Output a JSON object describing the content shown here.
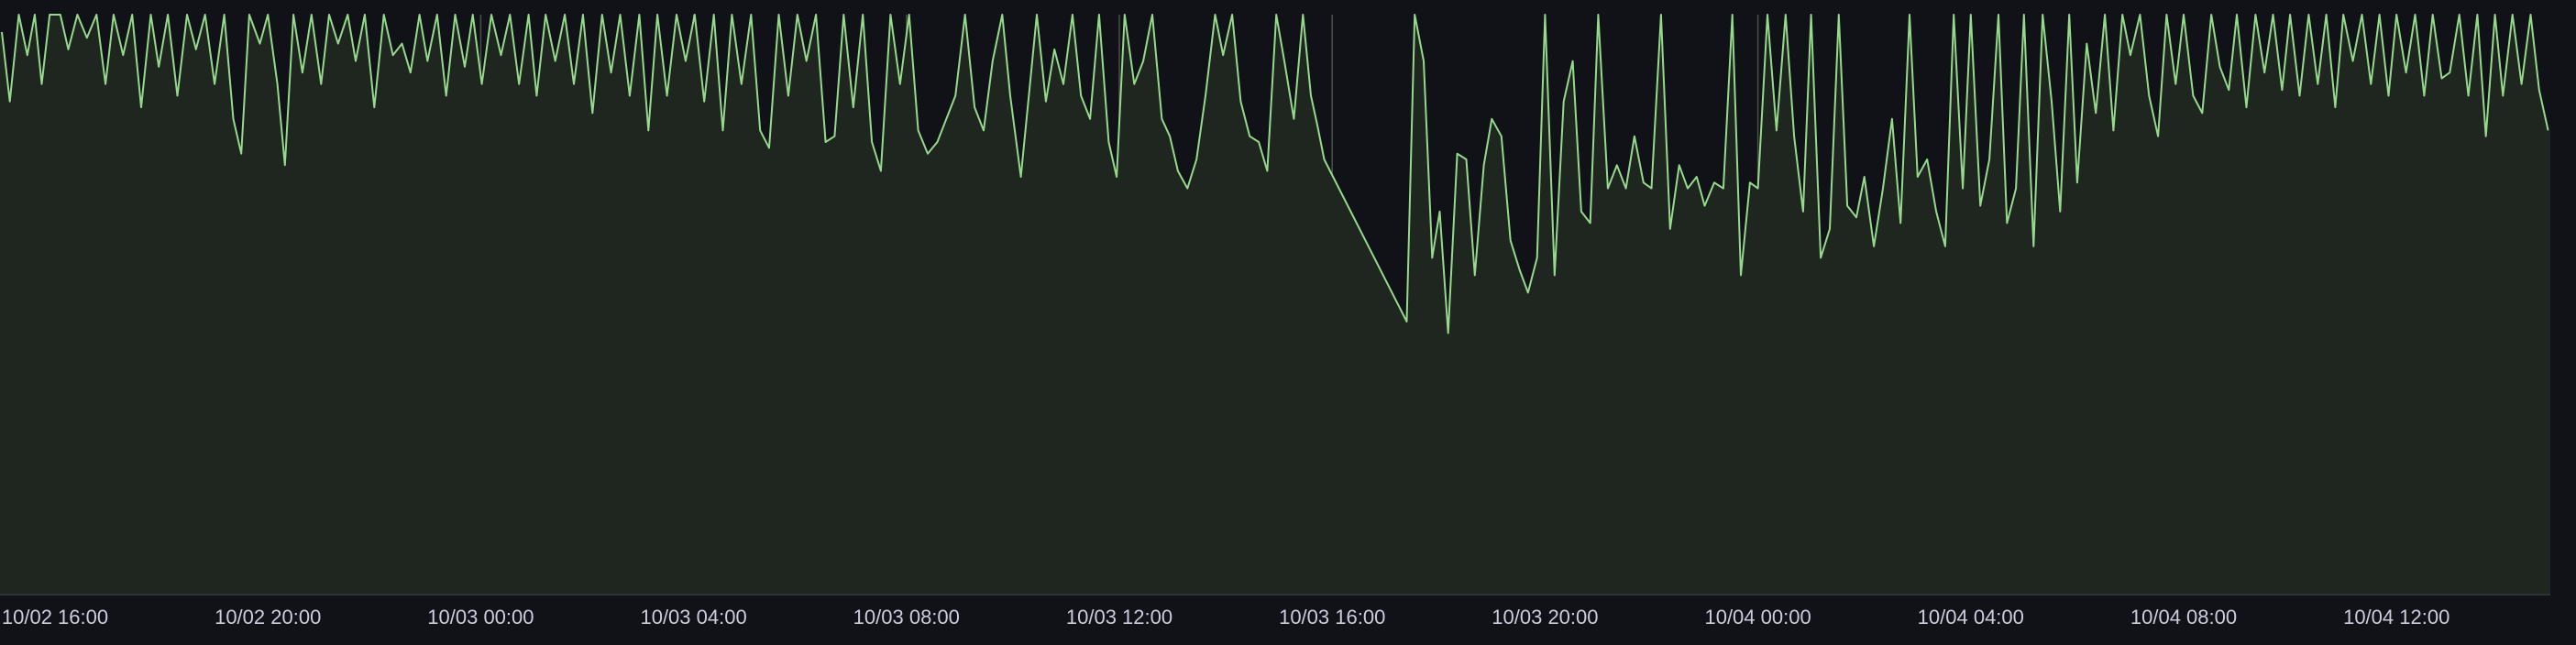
{
  "chart_data": {
    "type": "area",
    "title": "",
    "xlabel": "",
    "ylabel": "",
    "grid": "vertical",
    "legend": "none",
    "x_ticks": [
      "10/02 16:00",
      "10/02 20:00",
      "10/03 00:00",
      "10/03 04:00",
      "10/03 08:00",
      "10/03 12:00",
      "10/03 16:00",
      "10/03 20:00",
      "10/04 00:00",
      "10/04 04:00",
      "10/04 08:00",
      "10/04 12:00"
    ],
    "x_range_hours": [
      -1.03,
      46.9
    ],
    "ylim": [
      0,
      1
    ],
    "series": [
      {
        "color": "#96d98d",
        "fill": "#1f2620",
        "points": [
          [
            -1.0,
            0.97
          ],
          [
            -0.85,
            0.85
          ],
          [
            -0.68,
            1.0
          ],
          [
            -0.52,
            0.93
          ],
          [
            -0.38,
            1.0
          ],
          [
            -0.25,
            0.88
          ],
          [
            -0.1,
            1.0
          ],
          [
            0.1,
            1.0
          ],
          [
            0.25,
            0.94
          ],
          [
            0.42,
            1.0
          ],
          [
            0.6,
            0.96
          ],
          [
            0.78,
            1.0
          ],
          [
            0.95,
            0.88
          ],
          [
            1.1,
            1.0
          ],
          [
            1.28,
            0.93
          ],
          [
            1.45,
            1.0
          ],
          [
            1.62,
            0.84
          ],
          [
            1.8,
            1.0
          ],
          [
            1.95,
            0.91
          ],
          [
            2.12,
            1.0
          ],
          [
            2.3,
            0.86
          ],
          [
            2.48,
            1.0
          ],
          [
            2.65,
            0.94
          ],
          [
            2.82,
            1.0
          ],
          [
            3.0,
            0.88
          ],
          [
            3.18,
            1.0
          ],
          [
            3.35,
            0.82
          ],
          [
            3.5,
            0.76
          ],
          [
            3.65,
            1.0
          ],
          [
            3.85,
            0.95
          ],
          [
            4.0,
            1.0
          ],
          [
            4.18,
            0.88
          ],
          [
            4.32,
            0.74
          ],
          [
            4.48,
            1.0
          ],
          [
            4.65,
            0.9
          ],
          [
            4.82,
            1.0
          ],
          [
            5.0,
            0.88
          ],
          [
            5.15,
            1.0
          ],
          [
            5.32,
            0.95
          ],
          [
            5.5,
            1.0
          ],
          [
            5.65,
            0.92
          ],
          [
            5.82,
            1.0
          ],
          [
            6.0,
            0.84
          ],
          [
            6.18,
            1.0
          ],
          [
            6.35,
            0.93
          ],
          [
            6.52,
            0.95
          ],
          [
            6.68,
            0.9
          ],
          [
            6.85,
            1.0
          ],
          [
            7.0,
            0.92
          ],
          [
            7.18,
            1.0
          ],
          [
            7.35,
            0.86
          ],
          [
            7.52,
            1.0
          ],
          [
            7.7,
            0.91
          ],
          [
            7.85,
            1.0
          ],
          [
            8.02,
            0.88
          ],
          [
            8.2,
            1.0
          ],
          [
            8.38,
            0.93
          ],
          [
            8.55,
            1.0
          ],
          [
            8.72,
            0.88
          ],
          [
            8.9,
            1.0
          ],
          [
            9.05,
            0.86
          ],
          [
            9.22,
            1.0
          ],
          [
            9.4,
            0.92
          ],
          [
            9.58,
            1.0
          ],
          [
            9.75,
            0.88
          ],
          [
            9.92,
            1.0
          ],
          [
            10.1,
            0.83
          ],
          [
            10.28,
            1.0
          ],
          [
            10.45,
            0.9
          ],
          [
            10.62,
            1.0
          ],
          [
            10.8,
            0.86
          ],
          [
            10.98,
            1.0
          ],
          [
            11.15,
            0.8
          ],
          [
            11.32,
            1.0
          ],
          [
            11.5,
            0.86
          ],
          [
            11.68,
            1.0
          ],
          [
            11.85,
            0.92
          ],
          [
            12.02,
            1.0
          ],
          [
            12.2,
            0.85
          ],
          [
            12.38,
            1.0
          ],
          [
            12.55,
            0.8
          ],
          [
            12.72,
            1.0
          ],
          [
            12.9,
            0.88
          ],
          [
            13.08,
            1.0
          ],
          [
            13.25,
            0.8
          ],
          [
            13.42,
            0.77
          ],
          [
            13.6,
            1.0
          ],
          [
            13.78,
            0.86
          ],
          [
            13.95,
            1.0
          ],
          [
            14.12,
            0.92
          ],
          [
            14.3,
            1.0
          ],
          [
            14.48,
            0.78
          ],
          [
            14.65,
            0.79
          ],
          [
            14.82,
            1.0
          ],
          [
            15.0,
            0.84
          ],
          [
            15.18,
            1.0
          ],
          [
            15.35,
            0.78
          ],
          [
            15.52,
            0.73
          ],
          [
            15.7,
            1.0
          ],
          [
            15.88,
            0.88
          ],
          [
            16.05,
            1.0
          ],
          [
            16.22,
            0.8
          ],
          [
            16.4,
            0.76
          ],
          [
            16.58,
            0.78
          ],
          [
            16.75,
            0.82
          ],
          [
            16.92,
            0.86
          ],
          [
            17.1,
            1.0
          ],
          [
            17.28,
            0.84
          ],
          [
            17.45,
            0.8
          ],
          [
            17.62,
            0.92
          ],
          [
            17.8,
            1.0
          ],
          [
            17.95,
            0.86
          ],
          [
            18.15,
            0.72
          ],
          [
            18.45,
            1.0
          ],
          [
            18.62,
            0.85
          ],
          [
            18.78,
            0.94
          ],
          [
            18.95,
            0.88
          ],
          [
            19.12,
            1.0
          ],
          [
            19.28,
            0.86
          ],
          [
            19.45,
            0.82
          ],
          [
            19.62,
            1.0
          ],
          [
            19.8,
            0.78
          ],
          [
            19.95,
            0.72
          ],
          [
            20.1,
            1.0
          ],
          [
            20.28,
            0.88
          ],
          [
            20.45,
            0.92
          ],
          [
            20.62,
            1.0
          ],
          [
            20.8,
            0.82
          ],
          [
            20.95,
            0.79
          ],
          [
            21.1,
            0.73
          ],
          [
            21.28,
            0.7
          ],
          [
            21.45,
            0.75
          ],
          [
            21.62,
            0.86
          ],
          [
            21.8,
            1.0
          ],
          [
            21.95,
            0.93
          ],
          [
            22.12,
            1.0
          ],
          [
            22.28,
            0.85
          ],
          [
            22.45,
            0.79
          ],
          [
            22.62,
            0.78
          ],
          [
            22.78,
            0.73
          ],
          [
            22.95,
            1.0
          ],
          [
            23.1,
            0.92
          ],
          [
            23.28,
            0.82
          ],
          [
            23.45,
            1.0
          ],
          [
            23.6,
            0.86
          ],
          [
            23.72,
            0.81
          ],
          [
            23.85,
            0.75
          ],
          [
            25.4,
            0.47
          ],
          [
            25.55,
            1.0
          ],
          [
            25.72,
            0.92
          ],
          [
            25.88,
            0.58
          ],
          [
            26.02,
            0.66
          ],
          [
            26.18,
            0.45
          ],
          [
            26.35,
            0.76
          ],
          [
            26.52,
            0.75
          ],
          [
            26.68,
            0.55
          ],
          [
            26.85,
            0.74
          ],
          [
            27.0,
            0.82
          ],
          [
            27.18,
            0.79
          ],
          [
            27.35,
            0.61
          ],
          [
            27.52,
            0.56
          ],
          [
            27.68,
            0.52
          ],
          [
            27.85,
            0.58
          ],
          [
            28.0,
            1.0
          ],
          [
            28.18,
            0.55
          ],
          [
            28.35,
            0.85
          ],
          [
            28.52,
            0.92
          ],
          [
            28.68,
            0.66
          ],
          [
            28.85,
            0.64
          ],
          [
            29.0,
            1.0
          ],
          [
            29.18,
            0.7
          ],
          [
            29.35,
            0.74
          ],
          [
            29.52,
            0.7
          ],
          [
            29.68,
            0.79
          ],
          [
            29.85,
            0.71
          ],
          [
            30.0,
            0.7
          ],
          [
            30.18,
            1.0
          ],
          [
            30.35,
            0.63
          ],
          [
            30.52,
            0.74
          ],
          [
            30.68,
            0.7
          ],
          [
            30.85,
            0.72
          ],
          [
            31.0,
            0.67
          ],
          [
            31.18,
            0.71
          ],
          [
            31.35,
            0.7
          ],
          [
            31.52,
            1.0
          ],
          [
            31.68,
            0.55
          ],
          [
            31.85,
            0.71
          ],
          [
            32.0,
            0.7
          ],
          [
            32.18,
            1.0
          ],
          [
            32.35,
            0.8
          ],
          [
            32.52,
            1.0
          ],
          [
            32.68,
            0.79
          ],
          [
            32.85,
            0.66
          ],
          [
            33.0,
            1.0
          ],
          [
            33.18,
            0.58
          ],
          [
            33.35,
            0.63
          ],
          [
            33.52,
            1.0
          ],
          [
            33.68,
            0.67
          ],
          [
            33.85,
            0.65
          ],
          [
            34.0,
            0.72
          ],
          [
            34.18,
            0.6
          ],
          [
            34.35,
            0.7
          ],
          [
            34.52,
            0.82
          ],
          [
            34.68,
            0.64
          ],
          [
            34.85,
            1.0
          ],
          [
            35.0,
            0.72
          ],
          [
            35.18,
            0.75
          ],
          [
            35.35,
            0.66
          ],
          [
            35.52,
            0.6
          ],
          [
            35.68,
            1.0
          ],
          [
            35.85,
            0.7
          ],
          [
            36.0,
            1.0
          ],
          [
            36.18,
            0.67
          ],
          [
            36.35,
            0.75
          ],
          [
            36.52,
            1.0
          ],
          [
            36.68,
            0.64
          ],
          [
            36.85,
            0.7
          ],
          [
            37.0,
            1.0
          ],
          [
            37.18,
            0.6
          ],
          [
            37.35,
            1.0
          ],
          [
            37.52,
            0.85
          ],
          [
            37.68,
            0.66
          ],
          [
            37.85,
            1.0
          ],
          [
            38.0,
            0.71
          ],
          [
            38.18,
            0.95
          ],
          [
            38.35,
            0.83
          ],
          [
            38.52,
            1.0
          ],
          [
            38.68,
            0.8
          ],
          [
            38.85,
            1.0
          ],
          [
            39.0,
            0.93
          ],
          [
            39.18,
            1.0
          ],
          [
            39.35,
            0.86
          ],
          [
            39.52,
            0.79
          ],
          [
            39.68,
            1.0
          ],
          [
            39.85,
            0.88
          ],
          [
            40.0,
            1.0
          ],
          [
            40.18,
            0.86
          ],
          [
            40.35,
            0.83
          ],
          [
            40.52,
            1.0
          ],
          [
            40.68,
            0.91
          ],
          [
            40.85,
            0.87
          ],
          [
            41.0,
            1.0
          ],
          [
            41.18,
            0.84
          ],
          [
            41.35,
            1.0
          ],
          [
            41.52,
            0.9
          ],
          [
            41.68,
            1.0
          ],
          [
            41.85,
            0.87
          ],
          [
            42.0,
            1.0
          ],
          [
            42.18,
            0.86
          ],
          [
            42.35,
            1.0
          ],
          [
            42.52,
            0.88
          ],
          [
            42.68,
            1.0
          ],
          [
            42.85,
            0.84
          ],
          [
            43.0,
            1.0
          ],
          [
            43.18,
            0.92
          ],
          [
            43.35,
            1.0
          ],
          [
            43.52,
            0.88
          ],
          [
            43.68,
            1.0
          ],
          [
            43.85,
            0.86
          ],
          [
            44.0,
            1.0
          ],
          [
            44.18,
            0.9
          ],
          [
            44.35,
            1.0
          ],
          [
            44.52,
            0.86
          ],
          [
            44.68,
            1.0
          ],
          [
            44.85,
            0.89
          ],
          [
            45.0,
            0.9
          ],
          [
            45.18,
            1.0
          ],
          [
            45.35,
            0.86
          ],
          [
            45.52,
            1.0
          ],
          [
            45.68,
            0.79
          ],
          [
            45.85,
            1.0
          ],
          [
            46.0,
            0.86
          ],
          [
            46.18,
            1.0
          ],
          [
            46.35,
            0.88
          ],
          [
            46.52,
            1.0
          ],
          [
            46.68,
            0.87
          ],
          [
            46.85,
            0.8
          ]
        ]
      }
    ]
  }
}
